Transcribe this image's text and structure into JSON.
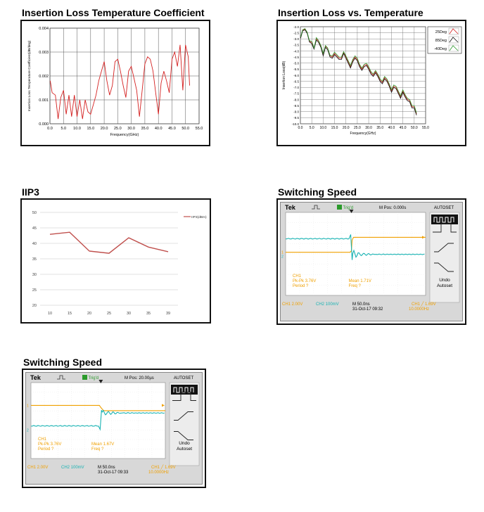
{
  "colors": {
    "red": "#d42020",
    "green": "#2f9a2f",
    "black": "#111111",
    "orange": "#f0a000",
    "teal": "#19b3b3",
    "iip3": "#c0504d"
  },
  "panels": {
    "p1": {
      "title": "Insertion Loss Temperature Coefficient"
    },
    "p2": {
      "title": "Insertion Loss vs. Temperature"
    },
    "p3": {
      "title": "IIP3"
    },
    "p4": {
      "title": "Switching Speed"
    },
    "p5": {
      "title": "Switching Speed"
    }
  },
  "chart_data": [
    {
      "type": "line",
      "id": "tempco",
      "xlabel": "Frequency(GHz)",
      "ylabel": "Insertion Loss Temperature Coefficient(dB/deg)",
      "xlim": [
        0.0,
        55.0
      ],
      "ylim": [
        0.0,
        0.004
      ],
      "x_ticks": [
        "0.0",
        "5.0",
        "10.0",
        "15.0",
        "20.0",
        "25.0",
        "30.0",
        "35.0",
        "40.0",
        "45.0",
        "50.0",
        "55.0"
      ],
      "y_ticks": [
        "0.000",
        "0.001",
        "0.002",
        "0.003",
        "0.004"
      ],
      "grid": true,
      "series": [
        {
          "x": [
            0.1,
            0.8,
            2.0,
            3.0,
            4.0,
            5.0,
            6.0,
            7.0,
            8.0,
            9.0,
            10.0,
            11.0,
            12.0,
            13.0,
            14.0,
            15.0,
            16.0,
            17.0,
            18.0,
            19.0,
            20.0,
            21.0,
            22.0,
            23.0,
            24.0,
            25.0,
            26.0,
            27.0,
            28.0,
            29.0,
            30.0,
            31.0,
            32.0,
            33.0,
            34.0,
            35.0,
            36.0,
            37.0,
            38.0,
            39.0,
            40.0,
            41.0,
            42.0,
            43.0,
            44.0,
            45.0,
            46.0,
            47.0,
            48.0,
            49.0,
            50.0,
            51.0,
            51.5
          ],
          "y": [
            0.0018,
            0.0013,
            0.0012,
            0.0002,
            0.0011,
            0.0014,
            0.0004,
            0.0012,
            0.0003,
            0.0012,
            0.0003,
            0.001,
            0.0002,
            0.001,
            0.0005,
            0.0004,
            0.0008,
            0.0012,
            0.0018,
            0.0022,
            0.0026,
            0.0018,
            0.0012,
            0.0016,
            0.0026,
            0.0027,
            0.0022,
            0.0016,
            0.0011,
            0.0022,
            0.0024,
            0.0019,
            0.0014,
            0.0003,
            0.0014,
            0.0025,
            0.0028,
            0.0027,
            0.0022,
            0.0013,
            0.0004,
            0.0017,
            0.0022,
            0.0018,
            0.0013,
            0.0027,
            0.003,
            0.0024,
            0.0033,
            0.0014,
            0.0033,
            0.0028,
            0.0016
          ]
        }
      ]
    },
    {
      "type": "line",
      "id": "il_vs_temp",
      "xlabel": "Frequency(GHz)",
      "ylabel": "Insertion Loss(dB)",
      "xlim": [
        0.0,
        55.0
      ],
      "ylim": [
        -10.0,
        -2.0
      ],
      "x_ticks": [
        "0.0",
        "5.0",
        "10.0",
        "15.0",
        "20.0",
        "25.0",
        "30.0",
        "35.0",
        "40.0",
        "45.0",
        "50.0",
        "55.0"
      ],
      "y_ticks": [
        "-2.0",
        "-2.5",
        "-3.0",
        "-3.5",
        "-4.0",
        "-4.5",
        "-5.0",
        "-5.5",
        "-6.0",
        "-6.5",
        "-7.0",
        "-7.5",
        "-8.0",
        "-8.5",
        "-9.0",
        "-9.5",
        "-10.0"
      ],
      "grid": true,
      "legend": "top-right",
      "x": [
        0.1,
        1.0,
        2.0,
        3.0,
        4.0,
        5.0,
        6.0,
        7.0,
        8.0,
        9.0,
        10.0,
        11.0,
        12.0,
        13.0,
        14.0,
        15.0,
        16.0,
        17.0,
        18.0,
        19.0,
        20.0,
        21.0,
        22.0,
        23.0,
        24.0,
        25.0,
        26.0,
        27.0,
        28.0,
        29.0,
        30.0,
        31.0,
        32.0,
        33.0,
        34.0,
        35.0,
        36.0,
        37.0,
        38.0,
        39.0,
        40.0,
        41.0,
        42.0,
        43.0,
        44.0,
        45.0,
        46.0,
        47.0,
        48.0,
        49.0,
        50.0,
        51.0
      ],
      "series": [
        {
          "name": "25Deg",
          "color_key": "red",
          "y": [
            -2.9,
            -2.3,
            -2.2,
            -2.5,
            -3.2,
            -3.3,
            -3.8,
            -3.0,
            -3.2,
            -3.6,
            -4.3,
            -3.6,
            -3.8,
            -4.4,
            -4.5,
            -4.2,
            -4.4,
            -4.6,
            -4.6,
            -4.1,
            -4.5,
            -4.9,
            -5.3,
            -4.8,
            -4.5,
            -4.7,
            -5.2,
            -5.5,
            -5.2,
            -5.1,
            -5.4,
            -5.8,
            -6.0,
            -5.7,
            -6.0,
            -6.4,
            -6.6,
            -6.2,
            -6.4,
            -6.8,
            -7.3,
            -6.9,
            -7.0,
            -7.4,
            -7.8,
            -7.3,
            -7.7,
            -8.0,
            -8.1,
            -8.6,
            -8.6,
            -9.2
          ]
        },
        {
          "name": "85Deg",
          "color_key": "black",
          "y": [
            -2.95,
            -2.35,
            -2.25,
            -2.55,
            -3.25,
            -3.4,
            -3.85,
            -3.1,
            -3.3,
            -3.7,
            -4.4,
            -3.7,
            -3.9,
            -4.5,
            -4.6,
            -4.3,
            -4.5,
            -4.7,
            -4.7,
            -4.2,
            -4.6,
            -5.0,
            -5.4,
            -4.9,
            -4.6,
            -4.8,
            -5.3,
            -5.6,
            -5.3,
            -5.2,
            -5.5,
            -5.9,
            -6.1,
            -5.8,
            -6.1,
            -6.5,
            -6.7,
            -6.3,
            -6.5,
            -6.9,
            -7.4,
            -7.0,
            -7.1,
            -7.5,
            -7.9,
            -7.4,
            -7.8,
            -8.1,
            -8.2,
            -8.7,
            -8.7,
            -9.3
          ]
        },
        {
          "name": "-40Deg",
          "color_key": "green",
          "y": [
            -2.85,
            -2.25,
            -2.15,
            -2.45,
            -3.15,
            -3.2,
            -3.75,
            -2.9,
            -3.15,
            -3.55,
            -4.2,
            -3.55,
            -3.75,
            -4.35,
            -4.4,
            -4.1,
            -4.3,
            -4.5,
            -4.5,
            -4.05,
            -4.4,
            -4.8,
            -5.2,
            -4.7,
            -4.4,
            -4.6,
            -5.1,
            -5.4,
            -5.1,
            -5.0,
            -5.3,
            -5.7,
            -5.9,
            -5.6,
            -5.9,
            -6.3,
            -6.5,
            -6.1,
            -6.3,
            -6.7,
            -7.2,
            -6.8,
            -6.9,
            -7.3,
            -7.7,
            -7.2,
            -7.6,
            -7.9,
            -8.0,
            -8.5,
            -8.5,
            -9.1
          ]
        }
      ]
    },
    {
      "type": "line",
      "id": "iip3",
      "categories": [
        "10",
        "15",
        "20",
        "25",
        "30",
        "35",
        "39"
      ],
      "ylim": [
        20,
        50
      ],
      "y_ticks": [
        "20",
        "25",
        "30",
        "35",
        "40",
        "45",
        "50"
      ],
      "grid": true,
      "legend": "top-right",
      "series": [
        {
          "name": "IIP3(dBm)",
          "values": [
            42.9,
            43.6,
            37.5,
            36.8,
            41.8,
            38.8,
            37.3
          ]
        }
      ]
    }
  ],
  "scope1": {
    "brand": "Tek",
    "trig": "Trig'd",
    "mpos": "M Pos: 0.000s",
    "autoset": "AUTOSET",
    "ch1_label": "CH1",
    "pkpk": "Pk-Pk 3.76V",
    "period": "Period ?",
    "mean": "Mean 1.71V",
    "freq": "Freq ?",
    "ch1_scale": "CH1  2.00V",
    "ch2_scale": "CH2  100mV",
    "timebase": "M 50.0ns",
    "date": "31-Oct-17 09:32",
    "trig_level": "CH1 ╱ 1.69V",
    "trig_freq": "10.0000Hz",
    "undo": "Undo",
    "autoset2": "Autoset",
    "marker1": "1",
    "marker2": "2"
  },
  "scope2": {
    "brand": "Tek",
    "trig": "Trig'd",
    "mpos": "M Pos: 20.00µs",
    "autoset": "AUTOSET",
    "ch1_label": "CH1",
    "pkpk": "Pk-Pk 3.76V",
    "period": "Period ?",
    "mean": "Mean 1.67V",
    "freq": "Freq ?",
    "ch1_scale": "CH1  2.00V",
    "ch2_scale": "CH2  100mV",
    "timebase": "M 50.0ns",
    "date": "31-Oct-17 09:33",
    "trig_level": "CH1 ╱ 1.69V",
    "trig_freq": "10.0000Hz",
    "undo": "Undo",
    "autoset2": "Autoset",
    "marker1": "1",
    "marker2": "2"
  }
}
